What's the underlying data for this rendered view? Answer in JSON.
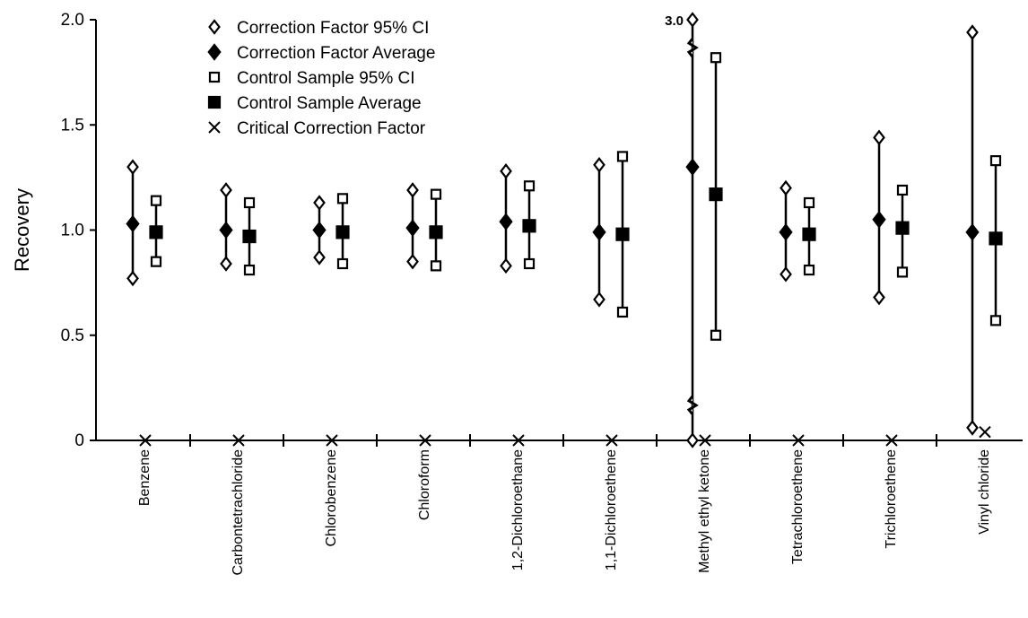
{
  "chart_data": {
    "type": "scatter",
    "title": "",
    "ylabel": "Recovery",
    "xlabel": "",
    "ylim": [
      0,
      2.0
    ],
    "yticks": [
      "0",
      "0.5",
      "1.0",
      "1.5",
      "2.0"
    ],
    "yticks_values": [
      0,
      0.5,
      1.0,
      1.5,
      2.0
    ],
    "grid": false,
    "legend_position": "top-center",
    "categories": [
      "Benzene",
      "Carbontetrachloride",
      "Chlorobenzene",
      "Chloroform",
      "1,2-Dichloroethane",
      "1,1-Dichloroethene",
      "Methyl ethyl ketone",
      "Tetrachloroethene",
      "Trichloroethene",
      "Vinyl chloride"
    ],
    "legend": [
      {
        "label": "Correction Factor 95% CI",
        "marker": "open-diamond"
      },
      {
        "label": "Correction Factor Average",
        "marker": "filled-diamond"
      },
      {
        "label": "Control Sample 95% CI",
        "marker": "open-square"
      },
      {
        "label": "Control Sample Average",
        "marker": "filled-square"
      },
      {
        "label": "Critical Correction Factor",
        "marker": "x"
      }
    ],
    "correction_factor": {
      "ci_lower": [
        0.77,
        0.84,
        0.87,
        0.85,
        0.83,
        0.67,
        0.0,
        0.79,
        0.68,
        0.06
      ],
      "ci_upper": [
        1.3,
        1.19,
        1.13,
        1.19,
        1.28,
        1.31,
        3.0,
        1.2,
        1.44,
        1.94
      ],
      "average": [
        1.03,
        1.0,
        1.0,
        1.01,
        1.04,
        0.99,
        1.3,
        0.99,
        1.05,
        0.99
      ]
    },
    "control_sample": {
      "ci_lower": [
        0.85,
        0.81,
        0.84,
        0.83,
        0.84,
        0.61,
        0.5,
        0.81,
        0.8,
        0.57
      ],
      "ci_upper": [
        1.14,
        1.13,
        1.15,
        1.17,
        1.21,
        1.35,
        1.82,
        1.13,
        1.19,
        1.33
      ],
      "average": [
        0.99,
        0.97,
        0.99,
        0.99,
        1.02,
        0.98,
        1.17,
        0.98,
        1.01,
        0.96
      ]
    },
    "critical_correction_factor": [
      0,
      0,
      0,
      0,
      0,
      0,
      0,
      0,
      0,
      0.04
    ],
    "annotations": [
      {
        "text": "3.0",
        "category": "Methyl ethyl ketone",
        "note": "value of upper correction-factor CI plotted off-scale"
      }
    ],
    "axis_break_category": "Methyl ethyl ketone"
  }
}
